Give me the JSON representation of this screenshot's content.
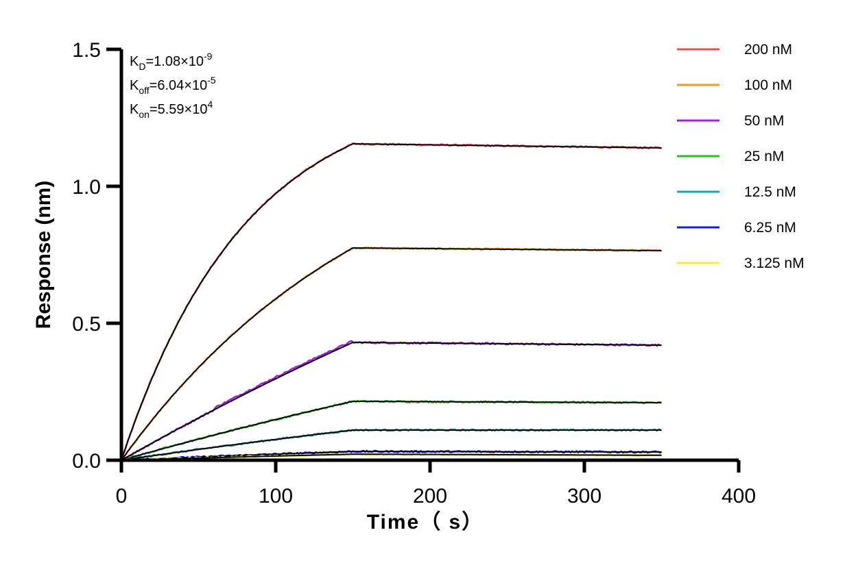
{
  "chart_data": {
    "type": "line",
    "xlabel": "Time（ s）",
    "ylabel": "Response (nm)",
    "xlim": [
      0,
      400
    ],
    "ylim": [
      0,
      1.5
    ],
    "x_ticks": [
      "0",
      "100",
      "200",
      "300",
      "400"
    ],
    "y_ticks": [
      "0.0",
      "0.5",
      "1.0",
      "1.5"
    ],
    "grid": false,
    "legend_position": "top-right",
    "annotations": {
      "kd": {
        "base": "K",
        "sub": "D",
        "value": "=1.08×10",
        "exp": "-9"
      },
      "koff": {
        "base": "K",
        "sub": "off",
        "value": "=6.04×10",
        "exp": "-5"
      },
      "kon": {
        "base": "K",
        "sub": "on",
        "value": "=5.59×10",
        "exp": "4"
      }
    },
    "association_end": 150,
    "end_time": 350,
    "series": [
      {
        "name": "200 nM",
        "color": "#e8504a",
        "plateau": 1.155,
        "end": 1.14
      },
      {
        "name": "100 nM",
        "color": "#f39a1e",
        "plateau": 0.775,
        "end": 0.765
      },
      {
        "name": "50 nM",
        "color": "#a31ed8",
        "plateau": 0.43,
        "end": 0.42
      },
      {
        "name": "25 nM",
        "color": "#2bbf23",
        "plateau": 0.215,
        "end": 0.21
      },
      {
        "name": "12.5 nM",
        "color": "#20a0a0",
        "plateau": 0.11,
        "end": 0.11
      },
      {
        "name": "6.25 nM",
        "color": "#1020d8",
        "plateau": 0.032,
        "end": 0.03
      },
      {
        "name": "3.125 nM",
        "color": "#ffee22",
        "plateau": 0.022,
        "end": 0.018
      }
    ],
    "fit_color": "#000000"
  }
}
